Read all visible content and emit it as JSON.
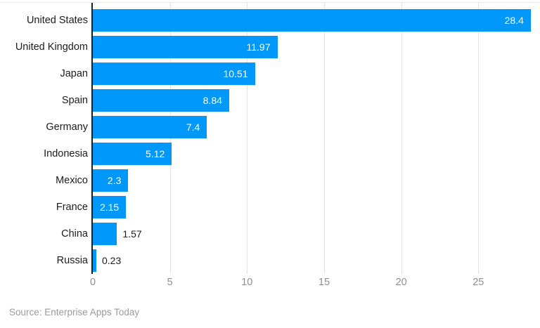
{
  "chart_data": {
    "type": "bar",
    "orientation": "horizontal",
    "title": "",
    "xlabel": "",
    "ylabel": "",
    "categories": [
      "United States",
      "United Kingdom",
      "Japan",
      "Spain",
      "Germany",
      "Indonesia",
      "Mexico",
      "France",
      "China",
      "Russia"
    ],
    "values": [
      28.4,
      11.97,
      10.51,
      8.84,
      7.4,
      5.12,
      2.3,
      2.15,
      1.57,
      0.23
    ],
    "value_labels": [
      "28.4",
      "11.97",
      "10.51",
      "8.84",
      "7.4",
      "5.12",
      "2.3",
      "2.15",
      "1.57",
      "0.23"
    ],
    "xlim": [
      0,
      28.45
    ],
    "xticks": [
      0,
      5,
      10,
      15,
      20,
      25
    ],
    "grid": "vertical-gridlines-on",
    "legend": "none",
    "colors": {
      "bar": "#0099fb",
      "value_label_inside": "#ffffff",
      "value_label_outside": "#1c1c1c",
      "category_label": "#1c1c1c",
      "axis_line": "#1f1f1f",
      "gridline": "#e4e4e4",
      "tick_label": "#8f8f8f",
      "source_text": "#9b9b9b"
    },
    "source": "Source: Enterprise Apps Today"
  }
}
